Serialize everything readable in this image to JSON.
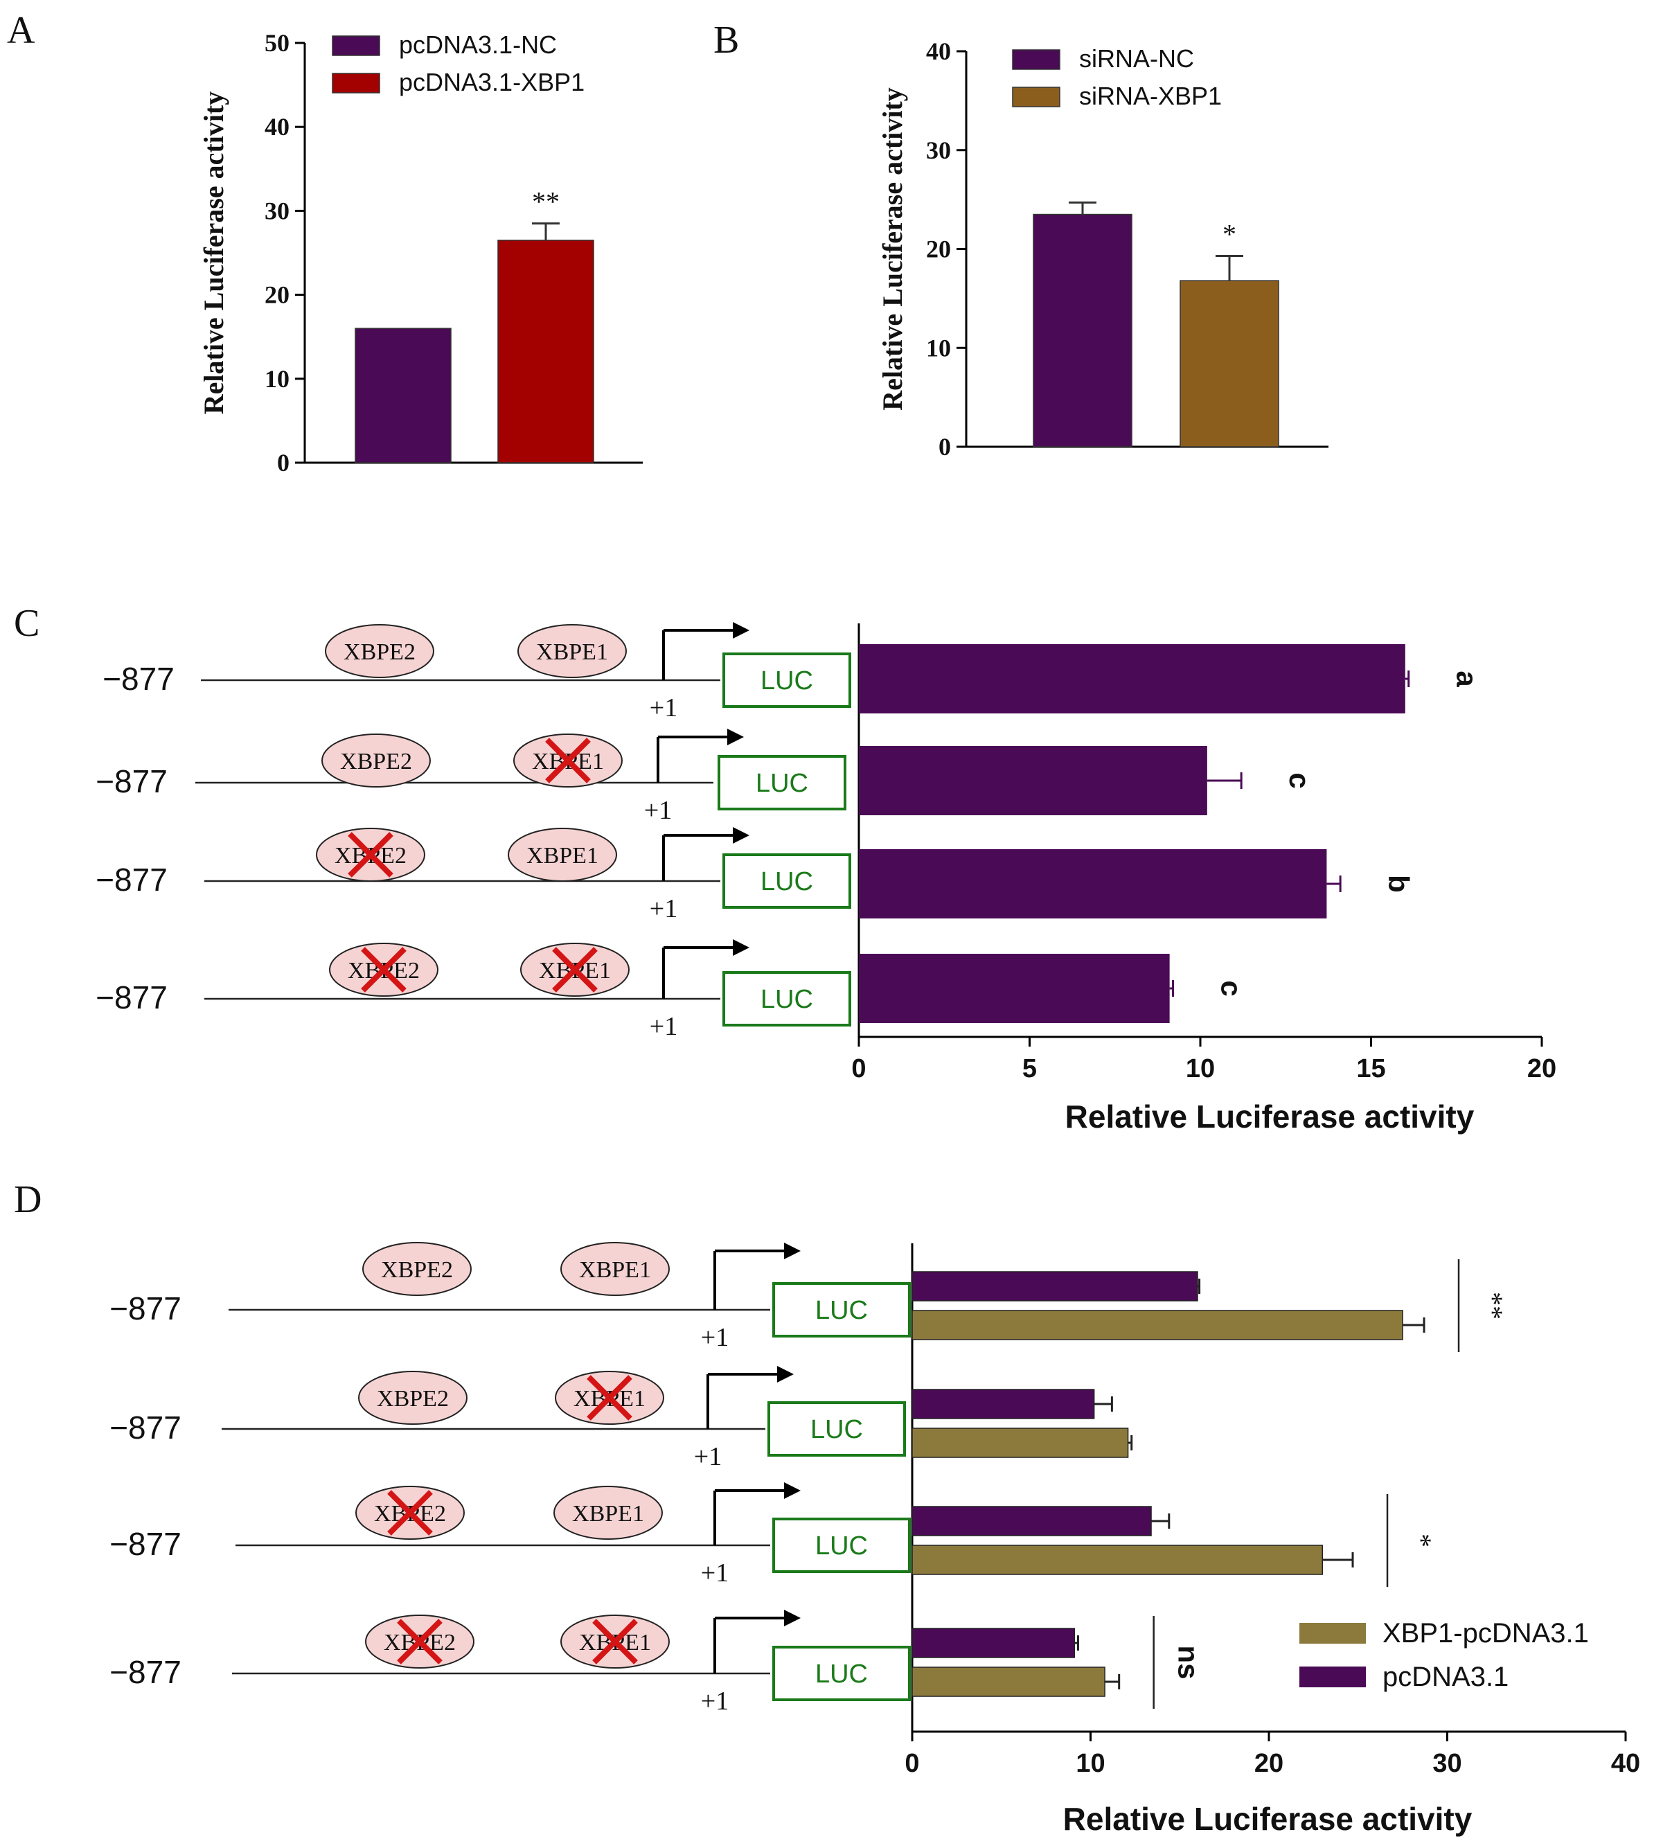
{
  "panels": {
    "a": "A",
    "b": "B",
    "c": "C",
    "d": "D"
  },
  "colors": {
    "purple": "#4a0a55",
    "red": "#a30000",
    "brown": "#8b5e1e",
    "olive": "#8c7a3d",
    "site_fill": "#f6d3d3",
    "luc_green": "#1a7a1a",
    "cross_red": "#d41515"
  },
  "construct": {
    "coordinate": "−877",
    "tss": "+1",
    "reporter": "LUC",
    "site1": "XBPE1",
    "site2": "XBPE2"
  },
  "chart_data": [
    {
      "type": "bar",
      "panel": "A",
      "categories": [
        "pcDNA3.1-NC",
        "pcDNA3.1-XBP1"
      ],
      "values": [
        16.0,
        26.5
      ],
      "errors": [
        0.1,
        2.0
      ],
      "colors": [
        "#4a0a55",
        "#a30000"
      ],
      "significance": [
        "",
        "**"
      ],
      "legend": [
        "pcDNA3.1-NC",
        "pcDNA3.1-XBP1"
      ],
      "ylabel": "Relative Luciferase activity",
      "ylim": [
        0,
        50
      ],
      "yticks": [
        0,
        10,
        20,
        30,
        40,
        50
      ]
    },
    {
      "type": "bar",
      "panel": "B",
      "categories": [
        "siRNA-NC",
        "siRNA-XBP1"
      ],
      "values": [
        23.5,
        16.8
      ],
      "errors": [
        1.2,
        2.5
      ],
      "colors": [
        "#4a0a55",
        "#8b5e1e"
      ],
      "significance": [
        "",
        "*"
      ],
      "legend": [
        "siRNA-NC",
        "siRNA-XBP1"
      ],
      "ylabel": "Relative Luciferase activity",
      "ylim": [
        0,
        40
      ],
      "yticks": [
        0,
        10,
        20,
        30,
        40
      ]
    },
    {
      "type": "bar",
      "panel": "C",
      "orientation": "horizontal",
      "constructs": [
        {
          "xbpe2_mut": false,
          "xbpe1_mut": false
        },
        {
          "xbpe2_mut": false,
          "xbpe1_mut": true
        },
        {
          "xbpe2_mut": true,
          "xbpe1_mut": false
        },
        {
          "xbpe2_mut": true,
          "xbpe1_mut": true
        }
      ],
      "values": [
        16.0,
        10.2,
        13.7,
        9.1
      ],
      "errors": [
        0.1,
        1.0,
        0.4,
        0.1
      ],
      "letters": [
        "a",
        "c",
        "b",
        "c"
      ],
      "color": "#4a0a55",
      "xlabel": "Relative Luciferase activity",
      "xlim": [
        0,
        20
      ],
      "xticks": [
        0,
        5,
        10,
        15,
        20
      ]
    },
    {
      "type": "bar",
      "panel": "D",
      "orientation": "horizontal",
      "constructs": [
        {
          "xbpe2_mut": false,
          "xbpe1_mut": false
        },
        {
          "xbpe2_mut": false,
          "xbpe1_mut": true
        },
        {
          "xbpe2_mut": true,
          "xbpe1_mut": false
        },
        {
          "xbpe2_mut": true,
          "xbpe1_mut": true
        }
      ],
      "series": [
        {
          "name": "pcDNA3.1",
          "color": "#4a0a55",
          "values": [
            16.0,
            10.2,
            13.4,
            9.1
          ],
          "errors": [
            0.1,
            1.0,
            1.0,
            0.2
          ]
        },
        {
          "name": "XBP1-pcDNA3.1",
          "color": "#8c7a3d",
          "values": [
            27.5,
            12.1,
            23.0,
            10.8
          ],
          "errors": [
            1.2,
            0.2,
            1.7,
            0.8
          ]
        }
      ],
      "significance": [
        "**",
        "",
        "*",
        "ns"
      ],
      "legend": [
        "XBP1-pcDNA3.1",
        "pcDNA3.1"
      ],
      "legend_position": "bottom-right",
      "xlabel": "Relative Luciferase activity",
      "xlim": [
        0,
        40
      ],
      "xticks": [
        0,
        10,
        20,
        30,
        40
      ]
    }
  ]
}
